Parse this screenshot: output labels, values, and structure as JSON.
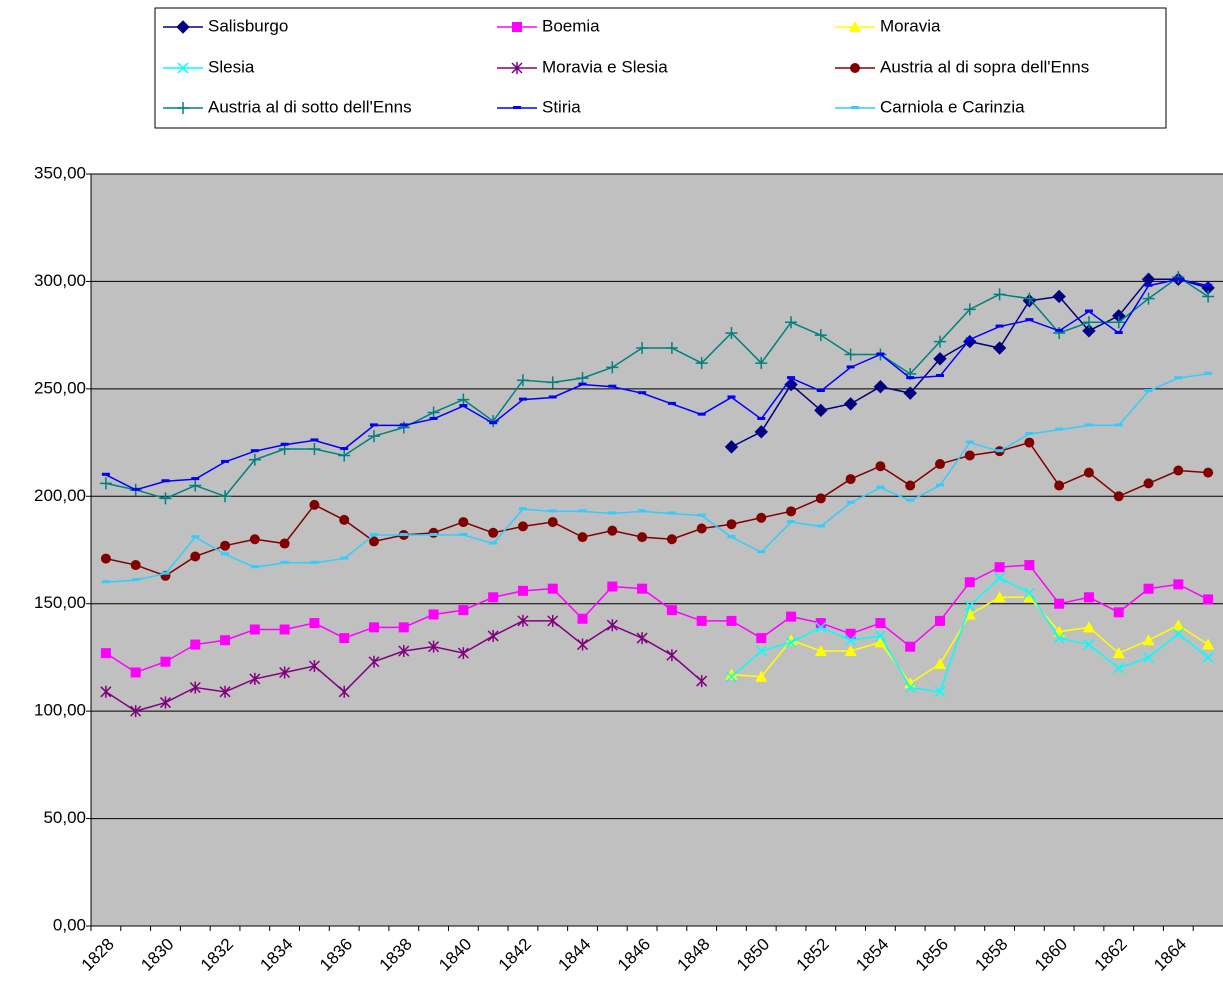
{
  "chart_data": {
    "type": "line",
    "categories": [
      "1828",
      null,
      "1830",
      null,
      "1832",
      null,
      "1834",
      null,
      "1836",
      null,
      "1838",
      null,
      "1840",
      null,
      "1842",
      null,
      "1844",
      null,
      "1846",
      null,
      "1848",
      null,
      "1850",
      null,
      "1852",
      null,
      "1854",
      null,
      "1856",
      null,
      "1858",
      null,
      "1860",
      null,
      "1862",
      null,
      "1864",
      null
    ],
    "ylim": [
      0,
      350
    ],
    "yticks": [
      {
        "value": 0,
        "label": "0,00"
      },
      {
        "value": 50,
        "label": "50,00"
      },
      {
        "value": 100,
        "label": "100,00"
      },
      {
        "value": 150,
        "label": "150,00"
      },
      {
        "value": 200,
        "label": "200,00"
      },
      {
        "value": 250,
        "label": "250,00"
      },
      {
        "value": 300,
        "label": "300,00"
      },
      {
        "value": 350,
        "label": "350,00"
      }
    ],
    "grid": true,
    "legend": "top",
    "series": [
      {
        "name": "Salisburgo",
        "color": "#000080",
        "marker": "diamond",
        "values": [
          null,
          null,
          null,
          null,
          null,
          null,
          null,
          null,
          null,
          null,
          null,
          null,
          null,
          null,
          null,
          null,
          null,
          null,
          null,
          null,
          null,
          223,
          230,
          252,
          240,
          243,
          251,
          248,
          264,
          272,
          269,
          291,
          293,
          277,
          284,
          301,
          301,
          297
        ]
      },
      {
        "name": "Boemia",
        "color": "#FF00FF",
        "marker": "square",
        "values": [
          127,
          118,
          123,
          131,
          133,
          138,
          138,
          141,
          134,
          139,
          139,
          145,
          147,
          153,
          156,
          157,
          143,
          158,
          157,
          147,
          142,
          142,
          134,
          144,
          141,
          136,
          141,
          130,
          142,
          160,
          167,
          168,
          150,
          153,
          146,
          157,
          159,
          152
        ]
      },
      {
        "name": "Moravia",
        "color": "#FFFF00",
        "marker": "triangle",
        "values": [
          null,
          null,
          null,
          null,
          null,
          null,
          null,
          null,
          null,
          null,
          null,
          null,
          null,
          null,
          null,
          null,
          null,
          null,
          null,
          null,
          null,
          117,
          116,
          133,
          128,
          128,
          132,
          113,
          122,
          145,
          153,
          153,
          137,
          139,
          127,
          133,
          140,
          131
        ]
      },
      {
        "name": "Slesia",
        "color": "#00FFFF",
        "marker": "x",
        "values": [
          null,
          null,
          null,
          null,
          null,
          null,
          null,
          null,
          null,
          null,
          null,
          null,
          null,
          null,
          null,
          null,
          null,
          null,
          null,
          null,
          null,
          116,
          128,
          132,
          139,
          133,
          135,
          111,
          109,
          149,
          162,
          155,
          134,
          131,
          120,
          125,
          136,
          125
        ]
      },
      {
        "name": "Moravia e Slesia",
        "color": "#800080",
        "marker": "star",
        "values": [
          109,
          100,
          104,
          111,
          109,
          115,
          118,
          121,
          109,
          123,
          128,
          130,
          127,
          135,
          142,
          142,
          131,
          140,
          134,
          126,
          114,
          null,
          null,
          null,
          null,
          null,
          null,
          null,
          null,
          null,
          null,
          null,
          null,
          null,
          null,
          null,
          null,
          null
        ]
      },
      {
        "name": "Austria al di sopra dell'Enns",
        "color": "#800000",
        "marker": "circle",
        "values": [
          171,
          168,
          163,
          172,
          177,
          180,
          178,
          196,
          189,
          179,
          182,
          183,
          188,
          183,
          186,
          188,
          181,
          184,
          181,
          180,
          185,
          187,
          190,
          193,
          199,
          208,
          214,
          205,
          215,
          219,
          221,
          225,
          205,
          211,
          200,
          206,
          212,
          211
        ]
      },
      {
        "name": "Austria al di sotto dell'Enns",
        "color": "#008080",
        "marker": "plus",
        "values": [
          206,
          203,
          199,
          205,
          200,
          217,
          222,
          222,
          219,
          228,
          232,
          239,
          245,
          235,
          254,
          253,
          255,
          260,
          269,
          269,
          262,
          276,
          262,
          281,
          275,
          266,
          266,
          257,
          272,
          287,
          294,
          292,
          276,
          281,
          281,
          292,
          302,
          293
        ]
      },
      {
        "name": "Stiria",
        "color": "#0000FF",
        "marker": "dash",
        "values": [
          210,
          203,
          207,
          208,
          216,
          221,
          224,
          226,
          222,
          233,
          233,
          236,
          242,
          234,
          245,
          246,
          252,
          251,
          248,
          243,
          238,
          246,
          236,
          255,
          249,
          260,
          266,
          255,
          256,
          273,
          279,
          282,
          277,
          286,
          276,
          298,
          301,
          298
        ]
      },
      {
        "name": "Carniola e Carinzia",
        "color": "#33CCFF",
        "marker": "dash",
        "values": [
          160,
          161,
          164,
          181,
          173,
          167,
          169,
          169,
          171,
          182,
          182,
          182,
          182,
          178,
          194,
          193,
          193,
          192,
          193,
          192,
          191,
          181,
          174,
          188,
          186,
          197,
          204,
          198,
          205,
          225,
          221,
          229,
          231,
          233,
          233,
          249,
          255,
          257
        ]
      }
    ]
  }
}
